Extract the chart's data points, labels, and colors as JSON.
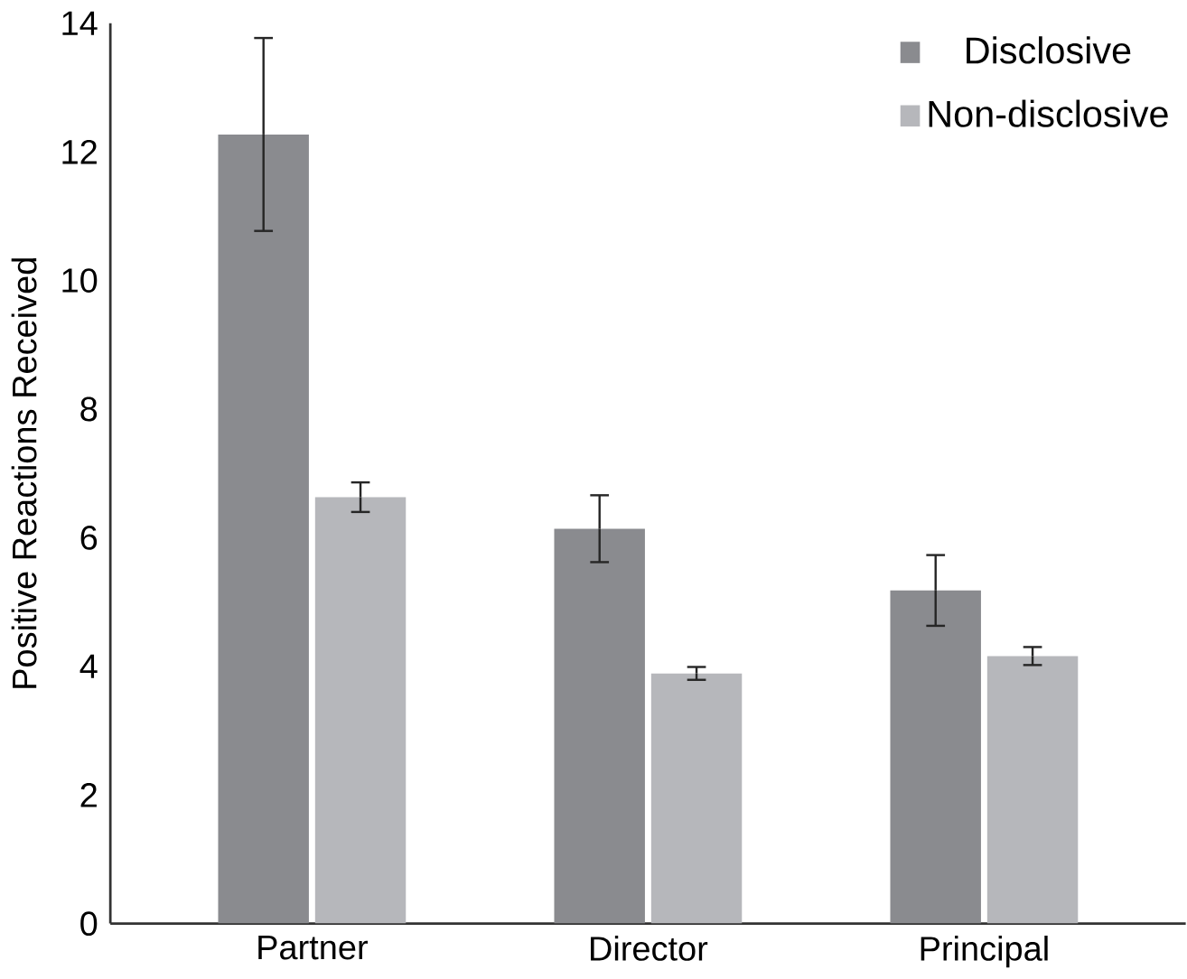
{
  "chart_data": {
    "type": "bar",
    "ylabel": "Positive Reactions Received",
    "categories": [
      "Partner",
      "Director",
      "Principal"
    ],
    "series": [
      {
        "name": "Disclosive",
        "color": "#8a8b8f",
        "values": [
          12.27,
          6.14,
          5.18
        ],
        "errors": [
          1.5,
          0.52,
          0.55
        ]
      },
      {
        "name": "Non-disclosive",
        "color": "#b6b7bb",
        "values": [
          6.63,
          3.89,
          4.16
        ],
        "errors": [
          0.23,
          0.1,
          0.14
        ]
      }
    ],
    "ylim": [
      0,
      14
    ],
    "yticks": [
      0,
      2,
      4,
      6,
      8,
      10,
      12,
      14
    ],
    "grid": false,
    "legend": "top right"
  }
}
